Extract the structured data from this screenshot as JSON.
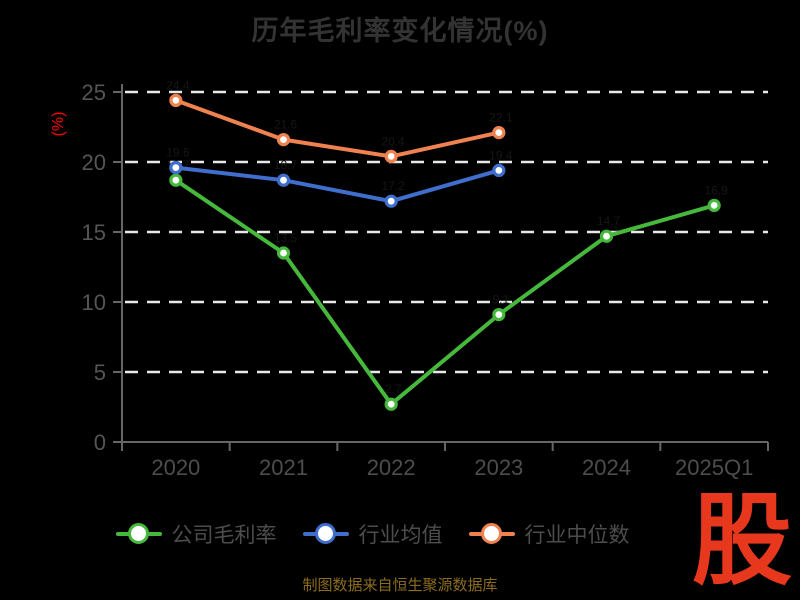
{
  "title": "历年毛利率变化情况(%)",
  "y_axis_name": "(%)",
  "source_note": "制图数据来自恒生聚源数据库",
  "logo_text": "股",
  "colors": {
    "background": "#000000",
    "title": "#333333",
    "axis_line": "#666666",
    "grid_line": "#e8e8e8",
    "y_tick_label": "#555555",
    "x_tick_label": "#4d4d4d",
    "y_axis_name": "#ff0000",
    "legend_text": "#4d4d4d",
    "source_note": "#8c6c1e",
    "logo": "#e7381d",
    "point_label": "#161616",
    "marker_fill": "#ffffff"
  },
  "chart_data": {
    "type": "line",
    "title": "历年毛利率变化情况(%)",
    "xlabel": "",
    "ylabel": "(%)",
    "categories": [
      "2020",
      "2021",
      "2022",
      "2023",
      "2024",
      "2025Q1"
    ],
    "series": [
      {
        "name": "公司毛利率",
        "color": "#46b93c",
        "values": [
          18.7,
          13.5,
          2.7,
          9.1,
          14.7,
          16.9
        ]
      },
      {
        "name": "行业均值",
        "color": "#3f6ecc",
        "values": [
          19.6,
          18.7,
          17.2,
          19.4,
          null,
          null
        ]
      },
      {
        "name": "行业中位数",
        "color": "#f08250",
        "values": [
          24.4,
          21.6,
          20.4,
          22.1,
          null,
          null
        ]
      }
    ],
    "ylim": [
      0,
      25
    ],
    "yticks": [
      0,
      5,
      10,
      15,
      20,
      25
    ],
    "grid": "horizontal dashed white lines",
    "legend_position": "bottom",
    "marker": "white circle with colored ring"
  }
}
